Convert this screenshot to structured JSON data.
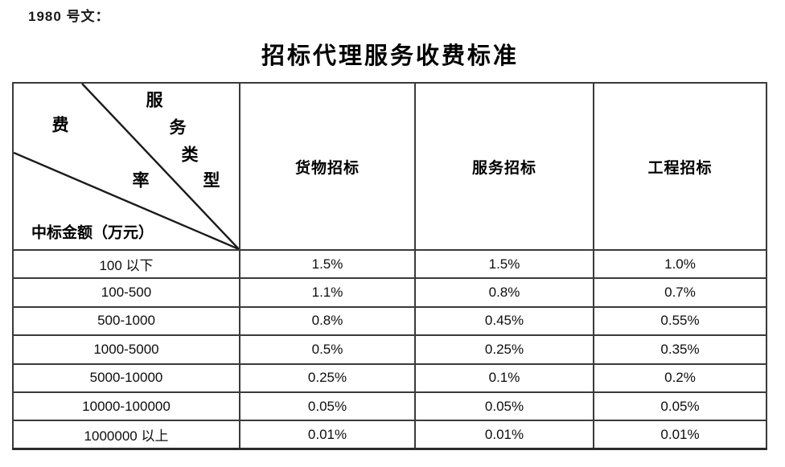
{
  "doc_ref": "1980 号文：",
  "title": "招标代理服务收费标准",
  "table": {
    "corner": {
      "fee_char": "费",
      "rate_char": "率",
      "service_type_chars": [
        "服",
        "务",
        "类",
        "型"
      ],
      "amount_label": "中标金额（万元）"
    },
    "columns": [
      "货物招标",
      "服务招标",
      "工程招标"
    ],
    "rows": [
      {
        "range": "100 以下",
        "values": [
          "1.5%",
          "1.5%",
          "1.0%"
        ]
      },
      {
        "range": "100-500",
        "values": [
          "1.1%",
          "0.8%",
          "0.7%"
        ]
      },
      {
        "range": "500-1000",
        "values": [
          "0.8%",
          "0.45%",
          "0.55%"
        ]
      },
      {
        "range": "1000-5000",
        "values": [
          "0.5%",
          "0.25%",
          "0.35%"
        ]
      },
      {
        "range": "5000-10000",
        "values": [
          "0.25%",
          "0.1%",
          "0.2%"
        ]
      },
      {
        "range": "10000-100000",
        "values": [
          "0.05%",
          "0.05%",
          "0.05%"
        ]
      },
      {
        "range": "1000000 以上",
        "values": [
          "0.01%",
          "0.01%",
          "0.01%"
        ]
      }
    ]
  },
  "colors": {
    "text": "#111111",
    "border": "#3a3a3a",
    "background": "#ffffff"
  }
}
